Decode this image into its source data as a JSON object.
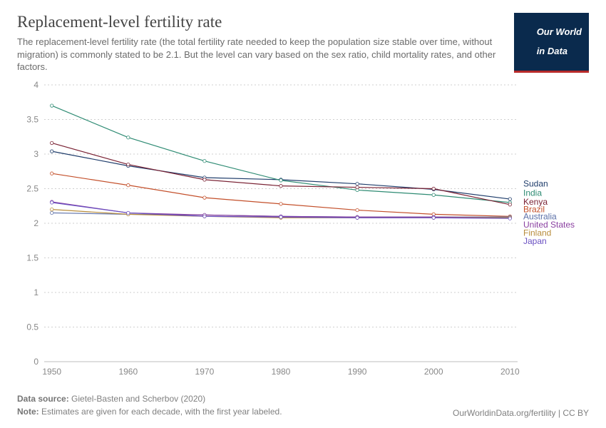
{
  "header": {
    "title": "Replacement-level fertility rate",
    "title_fontsize": 23,
    "subtitle": "The replacement-level fertility rate (the total fertility rate needed to keep the population size stable over time, without migration) is commonly stated to be 2.1. But the level can vary based on the sex ratio, child mortality rates, and other factors.",
    "subtitle_fontsize": 13,
    "logo_line1": "Our World",
    "logo_line2": "in Data",
    "logo_fontsize": 13
  },
  "chart": {
    "type": "line",
    "background_color": "#ffffff",
    "grid_color": "#cfcfcf",
    "axis_label_color": "#888888",
    "axis_label_fontsize": 12,
    "x": {
      "lim": [
        1949,
        2011
      ],
      "ticks": [
        1950,
        1960,
        1970,
        1980,
        1990,
        2000,
        2010
      ]
    },
    "y": {
      "lim": [
        0,
        4
      ],
      "ticks": [
        0,
        0.5,
        1,
        1.5,
        2,
        2.5,
        3,
        3.5,
        4
      ]
    },
    "marker_radius": 2.2,
    "line_width": 1.2,
    "series": [
      {
        "name": "Sudan",
        "color": "#1f3d6b",
        "end_label_y": 2.57,
        "values": [
          3.04,
          2.83,
          2.66,
          2.63,
          2.57,
          2.49,
          2.35
        ]
      },
      {
        "name": "India",
        "color": "#2e8b73",
        "end_label_y": 2.44,
        "values": [
          3.7,
          3.24,
          2.9,
          2.62,
          2.48,
          2.41,
          2.3
        ]
      },
      {
        "name": "Kenya",
        "color": "#7a2234",
        "end_label_y": 2.31,
        "values": [
          3.16,
          2.85,
          2.63,
          2.54,
          2.52,
          2.5,
          2.27
        ]
      },
      {
        "name": "Brazil",
        "color": "#c34f2a",
        "end_label_y": 2.2,
        "values": [
          2.72,
          2.55,
          2.37,
          2.28,
          2.19,
          2.13,
          2.1
        ]
      },
      {
        "name": "Australia",
        "color": "#5b6fa8",
        "end_label_y": 2.1,
        "values": [
          2.15,
          2.13,
          2.12,
          2.1,
          2.09,
          2.09,
          2.09
        ]
      },
      {
        "name": "United States",
        "color": "#8a3fa0",
        "end_label_y": 1.98,
        "values": [
          2.31,
          2.15,
          2.12,
          2.1,
          2.09,
          2.09,
          2.08
        ]
      },
      {
        "name": "Finland",
        "color": "#b88d3d",
        "end_label_y": 1.86,
        "values": [
          2.2,
          2.13,
          2.1,
          2.08,
          2.08,
          2.08,
          2.08
        ]
      },
      {
        "name": "Japan",
        "color": "#6a50c2",
        "end_label_y": 1.74,
        "values": [
          2.3,
          2.15,
          2.1,
          2.09,
          2.08,
          2.08,
          2.07
        ]
      }
    ]
  },
  "footer": {
    "source_label": "Data source:",
    "source_value": "Gietel-Basten and Scherbov (2020)",
    "note_label": "Note:",
    "note_value": "Estimates are given for each decade, with the first year labeled.",
    "attribution": "OurWorldinData.org/fertility",
    "license": "CC BY",
    "fontsize": 12
  }
}
